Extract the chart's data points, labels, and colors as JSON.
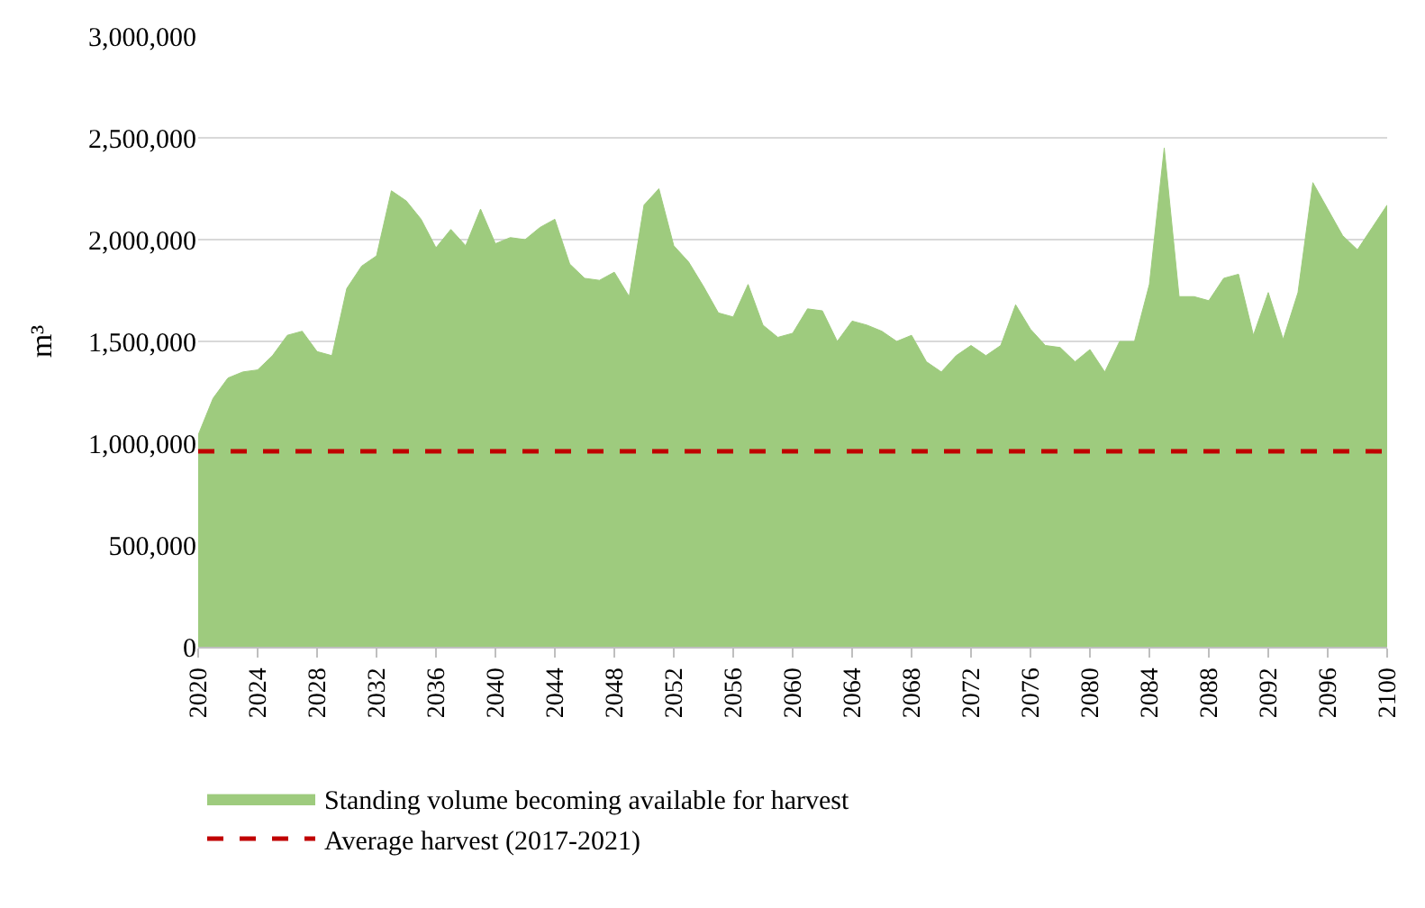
{
  "chart_data": {
    "type": "area",
    "ylabel": "m³",
    "x": [
      2020,
      2021,
      2022,
      2023,
      2024,
      2025,
      2026,
      2027,
      2028,
      2029,
      2030,
      2031,
      2032,
      2033,
      2034,
      2035,
      2036,
      2037,
      2038,
      2039,
      2040,
      2041,
      2042,
      2043,
      2044,
      2045,
      2046,
      2047,
      2048,
      2049,
      2050,
      2051,
      2052,
      2053,
      2054,
      2055,
      2056,
      2057,
      2058,
      2059,
      2060,
      2061,
      2062,
      2063,
      2064,
      2065,
      2066,
      2067,
      2068,
      2069,
      2070,
      2071,
      2072,
      2073,
      2074,
      2075,
      2076,
      2077,
      2078,
      2079,
      2080,
      2081,
      2082,
      2083,
      2084,
      2085,
      2086,
      2087,
      2088,
      2089,
      2090,
      2091,
      2092,
      2093,
      2094,
      2095,
      2096,
      2097,
      2098,
      2099,
      2100
    ],
    "series": [
      {
        "name": "Standing volume becoming available for harvest",
        "color": "#9ecb7e",
        "values": [
          1040000,
          1220000,
          1320000,
          1350000,
          1360000,
          1430000,
          1530000,
          1550000,
          1450000,
          1430000,
          1760000,
          1870000,
          1920000,
          2240000,
          2190000,
          2100000,
          1960000,
          2050000,
          1970000,
          2150000,
          1980000,
          2010000,
          2000000,
          2060000,
          2100000,
          1880000,
          1810000,
          1800000,
          1840000,
          1720000,
          2170000,
          2250000,
          1970000,
          1890000,
          1770000,
          1640000,
          1620000,
          1780000,
          1580000,
          1520000,
          1540000,
          1660000,
          1650000,
          1500000,
          1600000,
          1580000,
          1550000,
          1500000,
          1530000,
          1400000,
          1350000,
          1430000,
          1480000,
          1430000,
          1480000,
          1680000,
          1560000,
          1480000,
          1470000,
          1400000,
          1460000,
          1350000,
          1500000,
          1500000,
          1780000,
          2450000,
          1720000,
          1720000,
          1700000,
          1810000,
          1830000,
          1530000,
          1740000,
          1510000,
          1740000,
          2280000,
          2150000,
          2020000,
          1950000,
          2060000,
          2170000
        ]
      }
    ],
    "ref_lines": [
      {
        "axis": "y",
        "value": 960000,
        "label": "Average harvest (2017-2021)",
        "color": "#c00000",
        "line_style": "dashed"
      }
    ],
    "xlim": [
      2020,
      2100
    ],
    "xticks": [
      2020,
      2024,
      2028,
      2032,
      2036,
      2040,
      2044,
      2048,
      2052,
      2056,
      2060,
      2064,
      2068,
      2072,
      2076,
      2080,
      2084,
      2088,
      2092,
      2096,
      2100
    ],
    "ylim": [
      0,
      3000000
    ],
    "yticks": [
      {
        "value": 0,
        "label": "0"
      },
      {
        "value": 500000,
        "label": "500,000"
      },
      {
        "value": 1000000,
        "label": "1,000,000"
      },
      {
        "value": 1500000,
        "label": "1,500,000"
      },
      {
        "value": 2000000,
        "label": "2,000,000"
      },
      {
        "value": 2500000,
        "label": "2,500,000"
      },
      {
        "value": 3000000,
        "label": "3,000,000"
      }
    ],
    "grid": "y",
    "legend": "bottom"
  }
}
